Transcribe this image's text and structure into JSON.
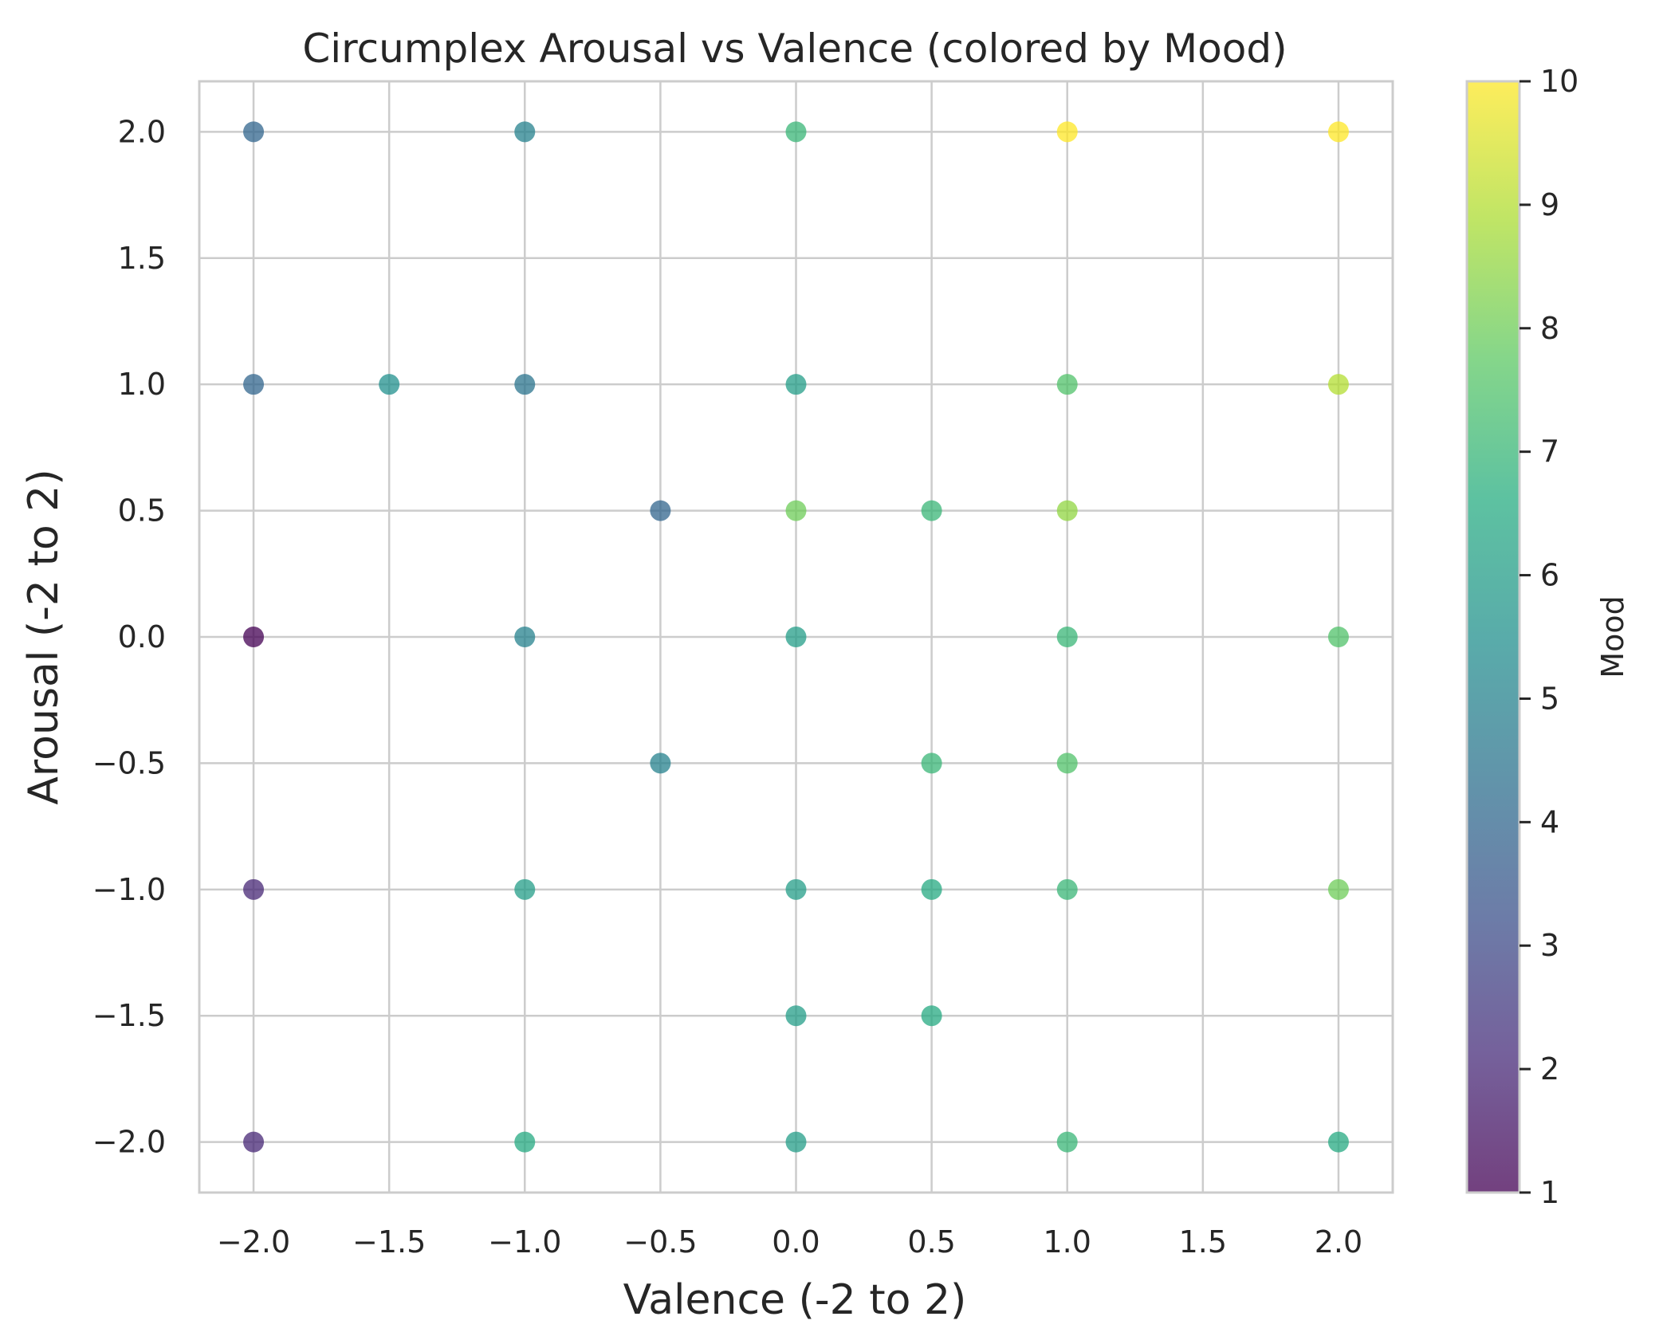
{
  "chart_data": {
    "type": "scatter",
    "title": "Circumplex Arousal vs Valence (colored by Mood)",
    "xlabel": "Valence (-2 to 2)",
    "ylabel": "Arousal (-2 to 2)",
    "xlim": [
      -2.2,
      2.2
    ],
    "ylim": [
      -2.2,
      2.2
    ],
    "xticks": [
      -2.0,
      -1.5,
      -1.0,
      -0.5,
      0.0,
      0.5,
      1.0,
      1.5,
      2.0
    ],
    "yticks": [
      -2.0,
      -1.5,
      -1.0,
      -0.5,
      0.0,
      0.5,
      1.0,
      1.5,
      2.0
    ],
    "xtick_labels": [
      "−2.0",
      "−1.5",
      "−1.0",
      "−0.5",
      "0.0",
      "0.5",
      "1.0",
      "1.5",
      "2.0"
    ],
    "ytick_labels": [
      "−2.0",
      "−1.5",
      "−1.0",
      "−0.5",
      "0.0",
      "0.5",
      "1.0",
      "1.5",
      "2.0"
    ],
    "grid": true,
    "colormap": "viridis",
    "marker_alpha": 0.75,
    "colorbar": {
      "label": "Mood",
      "range": [
        1,
        10
      ],
      "ticks": [
        1,
        2,
        3,
        4,
        5,
        6,
        7,
        8,
        9,
        10
      ],
      "tick_labels": [
        "1",
        "2",
        "3",
        "4",
        "5",
        "6",
        "7",
        "8",
        "9",
        "10"
      ]
    },
    "points": [
      {
        "valence": -2.0,
        "arousal": 2.0,
        "mood": 4
      },
      {
        "valence": -1.0,
        "arousal": 2.0,
        "mood": 5
      },
      {
        "valence": 0.0,
        "arousal": 2.0,
        "mood": 7
      },
      {
        "valence": 1.0,
        "arousal": 2.0,
        "mood": 10
      },
      {
        "valence": 2.0,
        "arousal": 2.0,
        "mood": 10
      },
      {
        "valence": -2.0,
        "arousal": 1.0,
        "mood": 4
      },
      {
        "valence": -1.5,
        "arousal": 1.0,
        "mood": 5.5
      },
      {
        "valence": -1.0,
        "arousal": 1.0,
        "mood": 4.5
      },
      {
        "valence": 0.0,
        "arousal": 1.0,
        "mood": 6
      },
      {
        "valence": 1.0,
        "arousal": 1.0,
        "mood": 7.5
      },
      {
        "valence": 2.0,
        "arousal": 1.0,
        "mood": 9
      },
      {
        "valence": -0.5,
        "arousal": 0.5,
        "mood": 4
      },
      {
        "valence": 0.0,
        "arousal": 0.5,
        "mood": 8
      },
      {
        "valence": 0.5,
        "arousal": 0.5,
        "mood": 7
      },
      {
        "valence": 1.0,
        "arousal": 0.5,
        "mood": 8.5
      },
      {
        "valence": -2.0,
        "arousal": 0.0,
        "mood": 1
      },
      {
        "valence": -1.0,
        "arousal": 0.0,
        "mood": 5
      },
      {
        "valence": 0.0,
        "arousal": 0.0,
        "mood": 6
      },
      {
        "valence": 1.0,
        "arousal": 0.0,
        "mood": 7
      },
      {
        "valence": 2.0,
        "arousal": 0.0,
        "mood": 7.5
      },
      {
        "valence": -0.5,
        "arousal": -0.5,
        "mood": 5
      },
      {
        "valence": 0.5,
        "arousal": -0.5,
        "mood": 7
      },
      {
        "valence": 1.0,
        "arousal": -0.5,
        "mood": 7.5
      },
      {
        "valence": -2.0,
        "arousal": -1.0,
        "mood": 2
      },
      {
        "valence": -1.0,
        "arousal": -1.0,
        "mood": 6
      },
      {
        "valence": 0.0,
        "arousal": -1.0,
        "mood": 6
      },
      {
        "valence": 0.5,
        "arousal": -1.0,
        "mood": 6.5
      },
      {
        "valence": 1.0,
        "arousal": -1.0,
        "mood": 7
      },
      {
        "valence": 2.0,
        "arousal": -1.0,
        "mood": 8
      },
      {
        "valence": 0.0,
        "arousal": -1.5,
        "mood": 6
      },
      {
        "valence": 0.5,
        "arousal": -1.5,
        "mood": 6.5
      },
      {
        "valence": -2.0,
        "arousal": -2.0,
        "mood": 2
      },
      {
        "valence": -1.0,
        "arousal": -2.0,
        "mood": 6.5
      },
      {
        "valence": 0.0,
        "arousal": -2.0,
        "mood": 6
      },
      {
        "valence": 1.0,
        "arousal": -2.0,
        "mood": 7
      },
      {
        "valence": 2.0,
        "arousal": -2.0,
        "mood": 6.5
      }
    ]
  }
}
